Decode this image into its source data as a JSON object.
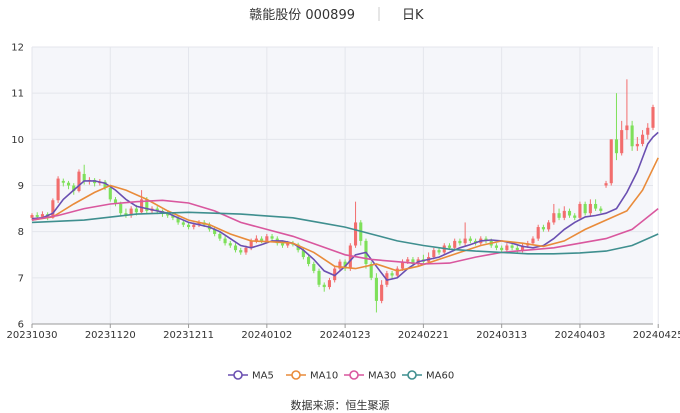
{
  "header": {
    "stock_title": "赣能股份 000899",
    "period": "日K"
  },
  "source": "数据来源：恒生聚源",
  "colors": {
    "up": "#f26d6d",
    "down": "#7ee05a",
    "grid": "#e4e6ec",
    "plot_bg": "#f5f6fa",
    "ma5": "#6a4fb1",
    "ma10": "#e98b3a",
    "ma30": "#d9579e",
    "ma60": "#3f8f8f"
  },
  "chart_data": {
    "type": "candlestick",
    "y_range": [
      6,
      12
    ],
    "y_ticks": [
      "6",
      "7",
      "8",
      "9",
      "10",
      "11",
      "12"
    ],
    "x_ticks": [
      "20231030",
      "20231120",
      "20231211",
      "20240102",
      "20240123",
      "20240221",
      "20240313",
      "20240403",
      "20240425"
    ],
    "x_tick_index": [
      0,
      15,
      30,
      45,
      60,
      75,
      90,
      105,
      120
    ],
    "candles": [
      [
        8.3,
        8.36,
        8.25,
        8.4
      ],
      [
        8.36,
        8.32,
        8.28,
        8.42
      ],
      [
        8.32,
        8.38,
        8.28,
        8.44
      ],
      [
        8.38,
        8.3,
        8.25,
        8.42
      ],
      [
        8.3,
        8.68,
        8.28,
        8.72
      ],
      [
        8.68,
        9.15,
        8.62,
        9.2
      ],
      [
        9.1,
        9.06,
        8.98,
        9.15
      ],
      [
        9.06,
        9.0,
        8.92,
        9.1
      ],
      [
        9.0,
        8.88,
        8.8,
        9.05
      ],
      [
        8.88,
        9.3,
        8.85,
        9.35
      ],
      [
        9.25,
        9.1,
        9.02,
        9.45
      ],
      [
        9.1,
        9.12,
        9.02,
        9.18
      ],
      [
        9.12,
        9.05,
        8.98,
        9.16
      ],
      [
        9.05,
        9.08,
        9.0,
        9.14
      ],
      [
        9.08,
        8.95,
        8.9,
        9.12
      ],
      [
        8.95,
        8.7,
        8.65,
        8.98
      ],
      [
        8.7,
        8.6,
        8.55,
        8.75
      ],
      [
        8.6,
        8.4,
        8.35,
        8.65
      ],
      [
        8.4,
        8.35,
        8.3,
        8.5
      ],
      [
        8.35,
        8.5,
        8.3,
        8.55
      ],
      [
        8.5,
        8.42,
        8.35,
        8.58
      ],
      [
        8.42,
        8.7,
        8.4,
        8.9
      ],
      [
        8.7,
        8.45,
        8.4,
        8.75
      ],
      [
        8.45,
        8.5,
        8.4,
        8.55
      ],
      [
        8.5,
        8.45,
        8.38,
        8.55
      ],
      [
        8.45,
        8.4,
        8.32,
        8.48
      ],
      [
        8.4,
        8.35,
        8.3,
        8.45
      ],
      [
        8.35,
        8.3,
        8.25,
        8.4
      ],
      [
        8.3,
        8.2,
        8.15,
        8.35
      ],
      [
        8.2,
        8.15,
        8.1,
        8.25
      ],
      [
        8.15,
        8.1,
        8.05,
        8.2
      ],
      [
        8.1,
        8.15,
        8.05,
        8.2
      ],
      [
        8.15,
        8.2,
        8.1,
        8.25
      ],
      [
        8.2,
        8.15,
        8.1,
        8.25
      ],
      [
        8.15,
        8.05,
        8.0,
        8.2
      ],
      [
        8.05,
        7.95,
        7.9,
        8.1
      ],
      [
        7.95,
        7.85,
        7.8,
        8.0
      ],
      [
        7.85,
        7.75,
        7.7,
        7.9
      ],
      [
        7.75,
        7.7,
        7.65,
        7.8
      ],
      [
        7.7,
        7.6,
        7.55,
        7.75
      ],
      [
        7.6,
        7.55,
        7.5,
        7.65
      ],
      [
        7.55,
        7.65,
        7.5,
        7.7
      ],
      [
        7.65,
        7.8,
        7.6,
        7.85
      ],
      [
        7.8,
        7.85,
        7.75,
        7.92
      ],
      [
        7.85,
        7.8,
        7.75,
        7.9
      ],
      [
        7.8,
        7.9,
        7.75,
        7.95
      ],
      [
        7.9,
        7.85,
        7.8,
        7.95
      ],
      [
        7.85,
        7.75,
        7.7,
        7.9
      ],
      [
        7.75,
        7.7,
        7.65,
        7.8
      ],
      [
        7.7,
        7.75,
        7.65,
        7.8
      ],
      [
        7.75,
        7.72,
        7.68,
        7.8
      ],
      [
        7.72,
        7.6,
        7.55,
        7.76
      ],
      [
        7.6,
        7.45,
        7.4,
        7.65
      ],
      [
        7.45,
        7.3,
        7.25,
        7.5
      ],
      [
        7.3,
        7.15,
        7.1,
        7.35
      ],
      [
        7.15,
        6.85,
        6.8,
        7.2
      ],
      [
        6.85,
        6.8,
        6.7,
        6.9
      ],
      [
        6.8,
        6.95,
        6.75,
        7.0
      ],
      [
        6.95,
        7.2,
        6.9,
        7.25
      ],
      [
        7.2,
        7.35,
        7.15,
        7.4
      ],
      [
        7.35,
        7.2,
        7.15,
        7.4
      ],
      [
        7.2,
        7.7,
        7.15,
        7.75
      ],
      [
        7.7,
        8.2,
        7.65,
        8.65
      ],
      [
        8.2,
        7.8,
        7.7,
        8.25
      ],
      [
        7.8,
        7.3,
        7.2,
        7.85
      ],
      [
        7.3,
        7.0,
        6.95,
        7.35
      ],
      [
        7.0,
        6.5,
        6.25,
        7.1
      ],
      [
        6.5,
        6.85,
        6.45,
        6.95
      ],
      [
        6.85,
        7.1,
        6.8,
        7.15
      ],
      [
        7.1,
        7.05,
        6.98,
        7.15
      ],
      [
        7.05,
        7.2,
        7.0,
        7.25
      ],
      [
        7.2,
        7.35,
        7.15,
        7.4
      ],
      [
        7.35,
        7.4,
        7.3,
        7.45
      ],
      [
        7.4,
        7.3,
        7.25,
        7.45
      ],
      [
        7.3,
        7.4,
        7.25,
        7.45
      ],
      [
        7.4,
        7.35,
        7.3,
        7.5
      ],
      [
        7.35,
        7.45,
        7.3,
        7.55
      ],
      [
        7.45,
        7.6,
        7.4,
        7.65
      ],
      [
        7.6,
        7.55,
        7.5,
        7.65
      ],
      [
        7.55,
        7.7,
        7.5,
        7.75
      ],
      [
        7.7,
        7.65,
        7.6,
        7.75
      ],
      [
        7.65,
        7.8,
        7.6,
        7.85
      ],
      [
        7.8,
        7.75,
        7.7,
        7.85
      ],
      [
        7.75,
        7.85,
        7.7,
        8.2
      ],
      [
        7.85,
        7.8,
        7.75,
        7.9
      ],
      [
        7.8,
        7.75,
        7.7,
        7.85
      ],
      [
        7.75,
        7.85,
        7.7,
        7.9
      ],
      [
        7.85,
        7.8,
        7.75,
        7.9
      ],
      [
        7.8,
        7.7,
        7.65,
        7.85
      ],
      [
        7.7,
        7.65,
        7.6,
        7.75
      ],
      [
        7.65,
        7.6,
        7.55,
        7.7
      ],
      [
        7.6,
        7.7,
        7.55,
        7.75
      ],
      [
        7.7,
        7.65,
        7.6,
        7.75
      ],
      [
        7.65,
        7.6,
        7.55,
        7.7
      ],
      [
        7.6,
        7.7,
        7.55,
        7.75
      ],
      [
        7.7,
        7.75,
        7.65,
        7.8
      ],
      [
        7.75,
        7.85,
        7.7,
        7.9
      ],
      [
        7.85,
        8.1,
        7.8,
        8.15
      ],
      [
        8.1,
        8.05,
        8.0,
        8.15
      ],
      [
        8.05,
        8.2,
        8.0,
        8.25
      ],
      [
        8.2,
        8.4,
        8.15,
        8.6
      ],
      [
        8.4,
        8.3,
        8.25,
        8.5
      ],
      [
        8.3,
        8.45,
        8.25,
        8.55
      ],
      [
        8.45,
        8.35,
        8.3,
        8.5
      ],
      [
        8.35,
        8.3,
        8.25,
        8.4
      ],
      [
        8.3,
        8.6,
        8.25,
        8.65
      ],
      [
        8.6,
        8.4,
        8.35,
        8.65
      ],
      [
        8.4,
        8.6,
        8.35,
        8.7
      ],
      [
        8.6,
        8.5,
        8.45,
        8.7
      ],
      [
        8.5,
        8.45,
        8.4,
        8.55
      ],
      [
        9.0,
        9.05,
        8.95,
        9.1
      ],
      [
        9.05,
        10.0,
        9.0,
        10.0
      ],
      [
        10.0,
        9.7,
        9.55,
        11.0
      ],
      [
        9.7,
        10.2,
        9.65,
        10.4
      ],
      [
        10.2,
        10.3,
        10.0,
        11.3
      ],
      [
        10.3,
        9.85,
        9.75,
        10.4
      ],
      [
        9.85,
        9.9,
        9.75,
        10.05
      ],
      [
        9.9,
        10.1,
        9.85,
        10.2
      ],
      [
        10.1,
        10.25,
        10.0,
        10.35
      ],
      [
        10.25,
        10.7,
        10.2,
        10.75
      ]
    ],
    "series": [
      {
        "name": "MA5",
        "values": [
          [
            0,
            8.28
          ],
          [
            2,
            8.3
          ],
          [
            4,
            8.4
          ],
          [
            6,
            8.7
          ],
          [
            8,
            8.9
          ],
          [
            10,
            9.1
          ],
          [
            12,
            9.1
          ],
          [
            14,
            9.05
          ],
          [
            16,
            8.9
          ],
          [
            18,
            8.7
          ],
          [
            20,
            8.55
          ],
          [
            22,
            8.5
          ],
          [
            24,
            8.45
          ],
          [
            26,
            8.4
          ],
          [
            28,
            8.3
          ],
          [
            30,
            8.2
          ],
          [
            32,
            8.15
          ],
          [
            34,
            8.1
          ],
          [
            36,
            8.0
          ],
          [
            38,
            7.85
          ],
          [
            40,
            7.7
          ],
          [
            42,
            7.65
          ],
          [
            44,
            7.72
          ],
          [
            46,
            7.8
          ],
          [
            48,
            7.8
          ],
          [
            50,
            7.75
          ],
          [
            52,
            7.6
          ],
          [
            54,
            7.4
          ],
          [
            56,
            7.15
          ],
          [
            58,
            7.05
          ],
          [
            60,
            7.25
          ],
          [
            62,
            7.5
          ],
          [
            64,
            7.55
          ],
          [
            66,
            7.25
          ],
          [
            68,
            6.95
          ],
          [
            70,
            7.0
          ],
          [
            72,
            7.2
          ],
          [
            74,
            7.35
          ],
          [
            76,
            7.4
          ],
          [
            78,
            7.45
          ],
          [
            80,
            7.55
          ],
          [
            82,
            7.65
          ],
          [
            84,
            7.72
          ],
          [
            86,
            7.8
          ],
          [
            88,
            7.82
          ],
          [
            90,
            7.8
          ],
          [
            92,
            7.75
          ],
          [
            94,
            7.68
          ],
          [
            96,
            7.65
          ],
          [
            98,
            7.7
          ],
          [
            100,
            7.85
          ],
          [
            102,
            8.05
          ],
          [
            104,
            8.2
          ],
          [
            106,
            8.32
          ],
          [
            108,
            8.35
          ],
          [
            110,
            8.4
          ],
          [
            112,
            8.5
          ],
          [
            114,
            8.85
          ],
          [
            116,
            9.3
          ],
          [
            118,
            9.9
          ],
          [
            119,
            10.05
          ],
          [
            120,
            10.15
          ]
        ]
      },
      {
        "name": "MA10",
        "values": [
          [
            0,
            8.25
          ],
          [
            4,
            8.32
          ],
          [
            8,
            8.6
          ],
          [
            12,
            8.85
          ],
          [
            15,
            9.0
          ],
          [
            18,
            8.9
          ],
          [
            22,
            8.7
          ],
          [
            26,
            8.45
          ],
          [
            30,
            8.25
          ],
          [
            34,
            8.15
          ],
          [
            38,
            7.95
          ],
          [
            42,
            7.8
          ],
          [
            46,
            7.78
          ],
          [
            50,
            7.75
          ],
          [
            54,
            7.55
          ],
          [
            58,
            7.25
          ],
          [
            62,
            7.2
          ],
          [
            66,
            7.3
          ],
          [
            70,
            7.15
          ],
          [
            74,
            7.25
          ],
          [
            78,
            7.4
          ],
          [
            82,
            7.55
          ],
          [
            86,
            7.7
          ],
          [
            90,
            7.8
          ],
          [
            94,
            7.75
          ],
          [
            98,
            7.68
          ],
          [
            102,
            7.8
          ],
          [
            106,
            8.05
          ],
          [
            110,
            8.25
          ],
          [
            114,
            8.45
          ],
          [
            117,
            8.9
          ],
          [
            120,
            9.6
          ]
        ]
      },
      {
        "name": "MA30",
        "values": [
          [
            0,
            8.25
          ],
          [
            5,
            8.35
          ],
          [
            10,
            8.5
          ],
          [
            15,
            8.6
          ],
          [
            20,
            8.65
          ],
          [
            25,
            8.68
          ],
          [
            30,
            8.62
          ],
          [
            35,
            8.45
          ],
          [
            40,
            8.2
          ],
          [
            45,
            8.05
          ],
          [
            50,
            7.9
          ],
          [
            55,
            7.7
          ],
          [
            60,
            7.5
          ],
          [
            65,
            7.4
          ],
          [
            70,
            7.35
          ],
          [
            75,
            7.3
          ],
          [
            80,
            7.32
          ],
          [
            85,
            7.45
          ],
          [
            90,
            7.55
          ],
          [
            95,
            7.6
          ],
          [
            100,
            7.65
          ],
          [
            105,
            7.75
          ],
          [
            110,
            7.85
          ],
          [
            115,
            8.05
          ],
          [
            120,
            8.5
          ]
        ]
      },
      {
        "name": "MA60",
        "values": [
          [
            0,
            8.2
          ],
          [
            10,
            8.25
          ],
          [
            20,
            8.38
          ],
          [
            30,
            8.42
          ],
          [
            40,
            8.38
          ],
          [
            50,
            8.3
          ],
          [
            55,
            8.2
          ],
          [
            60,
            8.1
          ],
          [
            65,
            7.95
          ],
          [
            70,
            7.8
          ],
          [
            75,
            7.7
          ],
          [
            80,
            7.62
          ],
          [
            85,
            7.58
          ],
          [
            90,
            7.55
          ],
          [
            95,
            7.52
          ],
          [
            100,
            7.52
          ],
          [
            105,
            7.54
          ],
          [
            110,
            7.58
          ],
          [
            115,
            7.7
          ],
          [
            120,
            7.95
          ]
        ]
      }
    ],
    "legend": [
      "MA5",
      "MA10",
      "MA30",
      "MA60"
    ],
    "legend_position": "bottom-center",
    "grid": true
  }
}
